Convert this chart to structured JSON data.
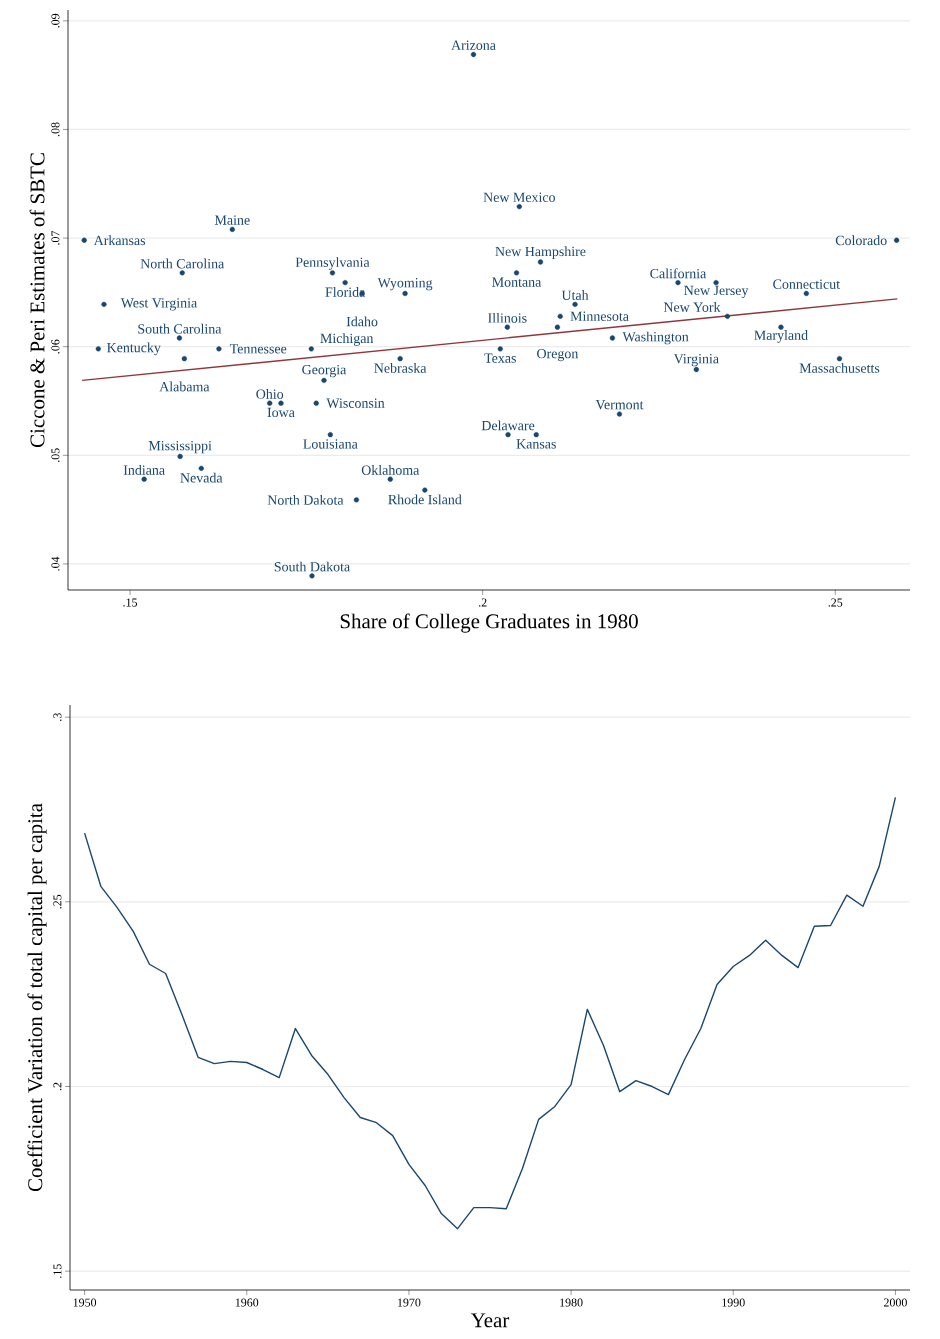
{
  "chart_data": [
    {
      "type": "scatter",
      "xlabel": "Share of College Graduates in 1980",
      "ylabel": "Ciccone & Peri Estimates of SBTC",
      "xlim": [
        0.1412,
        0.2606
      ],
      "ylim": [
        0.0376,
        0.091
      ],
      "xticks": [
        {
          "value": 0.15,
          "label": ".15"
        },
        {
          "value": 0.2,
          "label": ".2"
        },
        {
          "value": 0.25,
          "label": ".25"
        }
      ],
      "yticks": [
        {
          "value": 0.04,
          "label": ".04"
        },
        {
          "value": 0.05,
          "label": ".05"
        },
        {
          "value": 0.06,
          "label": ".06"
        },
        {
          "value": 0.07,
          "label": ".07"
        },
        {
          "value": 0.08,
          "label": ".08"
        },
        {
          "value": 0.09,
          "label": ".09"
        }
      ],
      "grid": "y",
      "series": [
        {
          "type": "scatter",
          "color": "#1a476f",
          "x": [
            0.1987,
            0.2052,
            0.1645,
            0.1435,
            0.2587,
            0.1574,
            0.1787,
            0.2082,
            0.2048,
            0.2277,
            0.2331,
            0.1805,
            0.1829,
            0.189,
            0.2459,
            0.1463,
            0.2131,
            0.211,
            0.2347,
            0.2035,
            0.2106,
            0.2423,
            0.157,
            0.2184,
            0.1455,
            0.1626,
            0.1757,
            0.2025,
            0.1577,
            0.1883,
            0.2506,
            0.2303,
            0.1775,
            0.1698,
            0.1714,
            0.1764,
            0.2194,
            0.1784,
            0.2036,
            0.2076,
            0.1571,
            0.1601,
            0.152,
            0.1869,
            0.1918,
            0.1821,
            0.1758
          ],
          "values": [
            0.0869,
            0.0729,
            0.0708,
            0.0698,
            0.0698,
            0.0668,
            0.0668,
            0.0678,
            0.0668,
            0.0659,
            0.0659,
            0.0659,
            0.0649,
            0.0649,
            0.0649,
            0.0639,
            0.0639,
            0.0628,
            0.0628,
            0.0618,
            0.0618,
            0.0618,
            0.0608,
            0.0608,
            0.0598,
            0.0598,
            0.0598,
            0.0598,
            0.0589,
            0.0589,
            0.0589,
            0.0579,
            0.0569,
            0.0548,
            0.0548,
            0.0548,
            0.0538,
            0.0519,
            0.0519,
            0.0519,
            0.0499,
            0.0488,
            0.0478,
            0.0478,
            0.0468,
            0.0459,
            0.0389
          ],
          "value_labels": [
            "Arizona",
            "New Mexico",
            "Maine",
            "Arkansas",
            "Colorado",
            "North Carolina",
            "Pennsylvania",
            "New Hampshire",
            "Montana",
            "California",
            "New Jersey",
            "Florida",
            "Idaho",
            "Wyoming",
            "Connecticut",
            "West Virginia",
            "Utah",
            "Minnesota",
            "New York",
            "Illinois",
            "Oregon",
            "Maryland",
            "South Carolina",
            "Washington",
            "Kentucky",
            "Tennessee",
            "Michigan",
            "Texas",
            "Alabama",
            "Nebraska",
            "Massachusetts",
            "Virginia",
            "Georgia",
            "Ohio",
            "Iowa",
            "Wisconsin",
            "Vermont",
            "Louisiana",
            "Delaware",
            "Kansas",
            "Mississippi",
            "Nevada",
            "Indiana",
            "Oklahoma",
            "Rhode Island",
            "North Dakota",
            "South Dakota"
          ]
        },
        {
          "type": "line",
          "color": "#90353b",
          "x": [
            0.1432,
            0.2588
          ],
          "values": [
            0.0569,
            0.0644
          ]
        }
      ]
    },
    {
      "type": "line",
      "xlabel": "Year",
      "ylabel": "Coefficient Variation of total capital per capita",
      "xlim": [
        1949.1,
        2000.9
      ],
      "ylim": [
        0.1449,
        0.3033
      ],
      "xticks": [
        1950,
        1960,
        1970,
        1980,
        1990,
        2000
      ],
      "yticks": [
        {
          "value": 0.15,
          "label": ".15"
        },
        {
          "value": 0.2,
          "label": ".2"
        },
        {
          "value": 0.25,
          "label": ".25"
        },
        {
          "value": 0.3,
          "label": ".3"
        }
      ],
      "grid": "y",
      "line_style": "solid",
      "color": "#1a476f",
      "x": [
        1950,
        1951,
        1952,
        1953,
        1954,
        1955,
        1956,
        1957,
        1958,
        1959,
        1960,
        1961,
        1962,
        1963,
        1964,
        1965,
        1966,
        1967,
        1968,
        1969,
        1970,
        1971,
        1972,
        1973,
        1974,
        1975,
        1976,
        1977,
        1978,
        1979,
        1980,
        1981,
        1982,
        1983,
        1984,
        1985,
        1986,
        1987,
        1988,
        1989,
        1990,
        1991,
        1992,
        1993,
        1994,
        1995,
        1996,
        1997,
        1998,
        1999,
        2000
      ],
      "values": [
        0.2686,
        0.2542,
        0.2485,
        0.242,
        0.2331,
        0.2306,
        0.2195,
        0.2079,
        0.2062,
        0.2068,
        0.2065,
        0.2046,
        0.2024,
        0.2157,
        0.2084,
        0.2033,
        0.197,
        0.1916,
        0.1902,
        0.1867,
        0.1789,
        0.1732,
        0.1656,
        0.1615,
        0.1672,
        0.1672,
        0.1669,
        0.1778,
        0.1911,
        0.1946,
        0.2005,
        0.2209,
        0.2111,
        0.1986,
        0.2016,
        0.2,
        0.1978,
        0.2073,
        0.2157,
        0.2276,
        0.2325,
        0.2355,
        0.2396,
        0.2355,
        0.2322,
        0.2434,
        0.2436,
        0.2518,
        0.2488,
        0.2596,
        0.2783
      ]
    }
  ]
}
